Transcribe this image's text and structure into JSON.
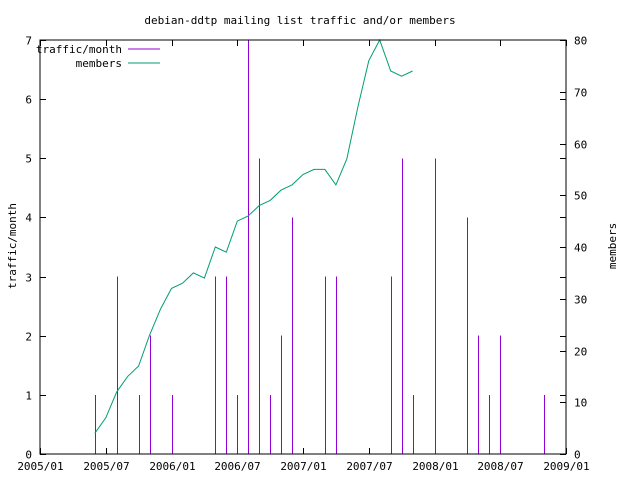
{
  "chart_data": {
    "type": "bar+line",
    "title": "debian-ddtp mailing list traffic and/or members",
    "ylabel": "traffic/month",
    "y2label": "members",
    "ylim": [
      0,
      7
    ],
    "y2lim": [
      0,
      80
    ],
    "yticks": [
      "0",
      "1",
      "2",
      "3",
      "4",
      "5",
      "6",
      "7"
    ],
    "y2ticks": [
      "0",
      "10",
      "20",
      "30",
      "40",
      "50",
      "60",
      "70",
      "80"
    ],
    "xlim": [
      "2005-01",
      "2009-01"
    ],
    "xticks": [
      "2005/01",
      "2005/07",
      "2006/01",
      "2006/07",
      "2007/01",
      "2007/07",
      "2008/01",
      "2008/07",
      "2009/01"
    ],
    "legend_position": "top-left",
    "series": [
      {
        "name": "traffic/month",
        "type": "impulse",
        "axis": "y",
        "color": "#9400d3",
        "x": [
          "2005-06",
          "2005-08",
          "2005-10",
          "2005-11",
          "2006-01",
          "2006-05",
          "2006-06",
          "2006-07",
          "2006-08",
          "2006-09",
          "2006-10",
          "2006-11",
          "2006-12",
          "2007-03",
          "2007-04",
          "2007-09",
          "2007-10",
          "2007-11",
          "2008-01",
          "2008-04",
          "2008-05",
          "2008-06",
          "2008-07",
          "2008-11"
        ],
        "values": [
          1,
          3,
          1,
          2,
          1,
          3,
          3,
          1,
          7,
          5,
          1,
          2,
          4,
          3,
          3,
          3,
          5,
          1,
          5,
          4,
          2,
          1,
          2,
          1
        ]
      },
      {
        "name": "members",
        "type": "line",
        "axis": "y2",
        "color": "#009e73",
        "x": [
          "2005-06",
          "2005-07",
          "2005-08",
          "2005-09",
          "2005-10",
          "2005-11",
          "2005-12",
          "2006-01",
          "2006-02",
          "2006-03",
          "2006-04",
          "2006-05",
          "2006-06",
          "2006-07",
          "2006-08",
          "2006-09",
          "2006-10",
          "2006-11",
          "2006-12",
          "2007-01",
          "2007-02",
          "2007-03",
          "2007-04",
          "2007-05",
          "2007-06",
          "2007-07",
          "2007-08",
          "2007-09",
          "2007-10",
          "2007-11"
        ],
        "values": [
          4,
          7,
          12,
          15,
          17,
          23,
          28,
          32,
          33,
          35,
          34,
          40,
          39,
          45,
          46,
          48,
          49,
          51,
          52,
          54,
          55,
          55,
          52,
          57,
          67,
          76,
          80,
          74,
          73,
          74
        ]
      }
    ]
  }
}
